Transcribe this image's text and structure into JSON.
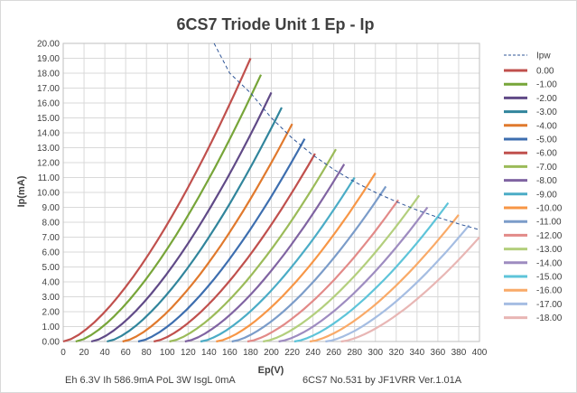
{
  "chart_data": {
    "type": "line",
    "title": "6CS7 Triode Unit 1 Ep - Ip",
    "xlabel": "Ep(V)",
    "ylabel": "Ip(mA)",
    "xlim": [
      0,
      400
    ],
    "ylim": [
      0,
      20
    ],
    "x_ticks": [
      "0",
      "20",
      "40",
      "60",
      "80",
      "100",
      "120",
      "140",
      "160",
      "180",
      "200",
      "220",
      "240",
      "260",
      "280",
      "300",
      "320",
      "340",
      "360",
      "380",
      "400"
    ],
    "y_ticks": [
      "0.00",
      "1.00",
      "2.00",
      "3.00",
      "4.00",
      "5.00",
      "6.00",
      "7.00",
      "8.00",
      "9.00",
      "10.00",
      "11.00",
      "12.00",
      "13.00",
      "14.00",
      "15.00",
      "16.00",
      "17.00",
      "18.00",
      "19.00",
      "20.00"
    ],
    "grid": true,
    "legend_position": "right",
    "footer_left": "Eh  6.3V Ih   586.9mA PoL  3W IsgL  0mA",
    "footer_right": "6CS7 No.531  by JF1VRR Ver.1.01A",
    "pw_curve": {
      "name": "Ipw",
      "color": "#2f5597",
      "dashed": true,
      "x": [
        145,
        160,
        180,
        200,
        220,
        240,
        260,
        280,
        300,
        320,
        340,
        360,
        380,
        400
      ],
      "y": [
        20.0,
        18.0,
        16.67,
        15.0,
        13.64,
        12.5,
        11.54,
        10.71,
        10.0,
        9.38,
        8.82,
        8.33,
        7.89,
        7.5
      ]
    },
    "series": [
      {
        "name": "0.00",
        "color": "#c0504d",
        "x0": 0,
        "xmax": 180,
        "ymax": 19.0
      },
      {
        "name": "-1.00",
        "color": "#77a539",
        "x0": 12,
        "xmax": 190,
        "ymax": 17.9
      },
      {
        "name": "-2.00",
        "color": "#604a87",
        "x0": 27,
        "xmax": 200,
        "ymax": 16.7
      },
      {
        "name": "-3.00",
        "color": "#31859c",
        "x0": 42,
        "xmax": 210,
        "ymax": 15.7
      },
      {
        "name": "-4.00",
        "color": "#e0792d",
        "x0": 57,
        "xmax": 220,
        "ymax": 14.6
      },
      {
        "name": "-5.00",
        "color": "#3d6eaf",
        "x0": 72,
        "xmax": 232,
        "ymax": 13.6
      },
      {
        "name": "-6.00",
        "color": "#c0504d",
        "x0": 87,
        "xmax": 242,
        "ymax": 12.6
      },
      {
        "name": "-7.00",
        "color": "#9bbb59",
        "x0": 102,
        "xmax": 262,
        "ymax": 12.9
      },
      {
        "name": "-8.00",
        "color": "#8064a2",
        "x0": 117,
        "xmax": 270,
        "ymax": 11.9
      },
      {
        "name": "-9.00",
        "color": "#4bacc6",
        "x0": 132,
        "xmax": 280,
        "ymax": 11.0
      },
      {
        "name": "-10.00",
        "color": "#f79646",
        "x0": 147,
        "xmax": 300,
        "ymax": 11.3
      },
      {
        "name": "-11.00",
        "color": "#7b9cc9",
        "x0": 162,
        "xmax": 310,
        "ymax": 10.4
      },
      {
        "name": "-12.00",
        "color": "#e28a88",
        "x0": 177,
        "xmax": 322,
        "ymax": 9.5
      },
      {
        "name": "-13.00",
        "color": "#b3cf7d",
        "x0": 192,
        "xmax": 342,
        "ymax": 9.8
      },
      {
        "name": "-14.00",
        "color": "#9e8cc0",
        "x0": 207,
        "xmax": 350,
        "ymax": 9.0
      },
      {
        "name": "-15.00",
        "color": "#5ec4d9",
        "x0": 222,
        "xmax": 370,
        "ymax": 9.3
      },
      {
        "name": "-16.00",
        "color": "#f9aa68",
        "x0": 237,
        "xmax": 380,
        "ymax": 8.5
      },
      {
        "name": "-17.00",
        "color": "#a5bde2",
        "x0": 252,
        "xmax": 390,
        "ymax": 7.8
      },
      {
        "name": "-18.00",
        "color": "#e8b6b4",
        "x0": 267,
        "xmax": 400,
        "ymax": 7.0
      }
    ]
  }
}
